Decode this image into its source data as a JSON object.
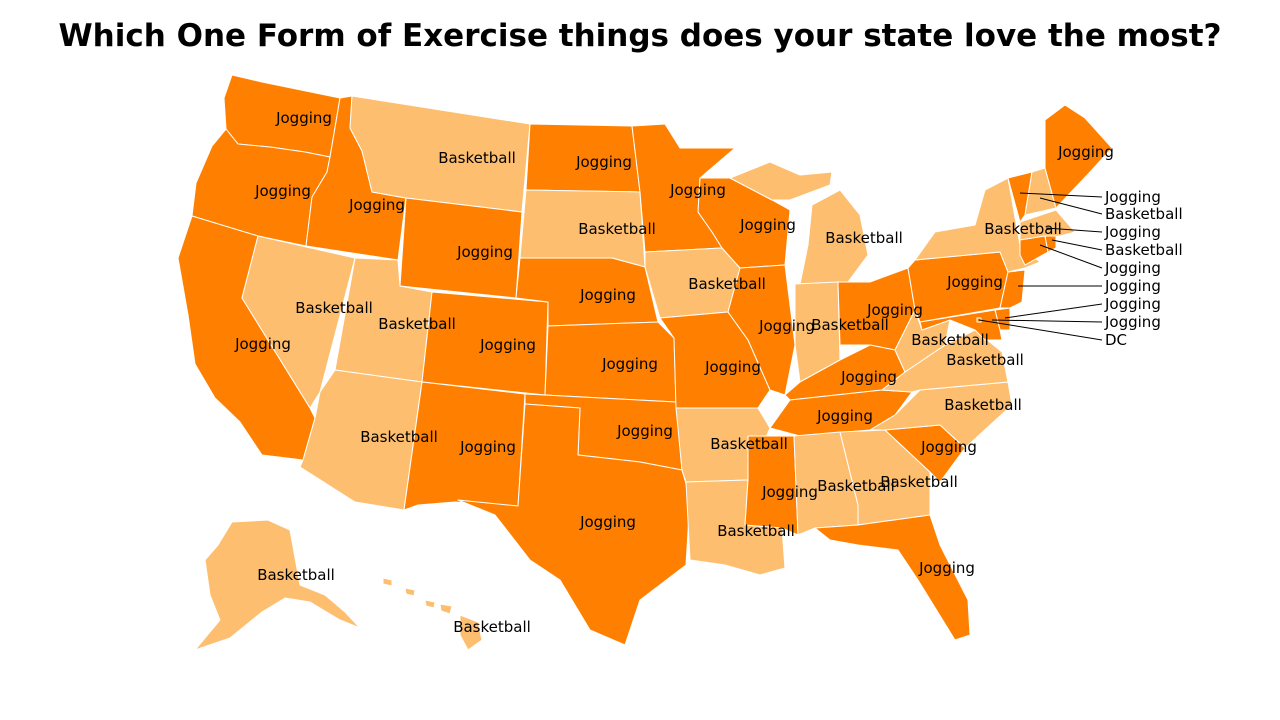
{
  "title": "Which One Form of Exercise things does your state love the most?",
  "categories": {
    "Jogging": "#ff8000",
    "Basketball": "#fdbf6f"
  },
  "states": {
    "WA": "Jogging",
    "OR": "Jogging",
    "CA": "Jogging",
    "ID": "Jogging",
    "NV": "Basketball",
    "MT": "Basketball",
    "WY": "Jogging",
    "UT": "Basketball",
    "AZ": "Basketball",
    "CO": "Jogging",
    "NM": "Jogging",
    "ND": "Jogging",
    "SD": "Basketball",
    "NE": "Jogging",
    "KS": "Jogging",
    "OK": "Jogging",
    "TX": "Jogging",
    "MN": "Jogging",
    "IA": "Basketball",
    "MO": "Jogging",
    "AR": "Basketball",
    "LA": "Basketball",
    "WI": "Jogging",
    "IL": "Jogging",
    "MI": "Basketball",
    "IN": "Basketball",
    "OH": "Jogging",
    "KY": "Jogging",
    "TN": "Jogging",
    "MS": "Jogging",
    "AL": "Basketball",
    "GA": "Basketball",
    "FL": "Jogging",
    "SC": "Jogging",
    "NC": "Basketball",
    "VA": "Basketball",
    "WV": "Basketball",
    "PA": "Jogging",
    "NY": "Basketball",
    "ME": "Jogging",
    "VT": "Jogging",
    "NH": "Basketball",
    "MA": "Basketball",
    "RI": "Jogging",
    "CT": "Jogging",
    "NJ": "Jogging",
    "DE": "Jogging",
    "MD": "Jogging",
    "DC": "DC",
    "AK": "Basketball",
    "HI": "Basketball"
  },
  "callouts": [
    "Jogging",
    "Basketball",
    "Jogging",
    "Basketball",
    "Jogging",
    "Jogging",
    "Jogging",
    "Jogging",
    "DC"
  ]
}
